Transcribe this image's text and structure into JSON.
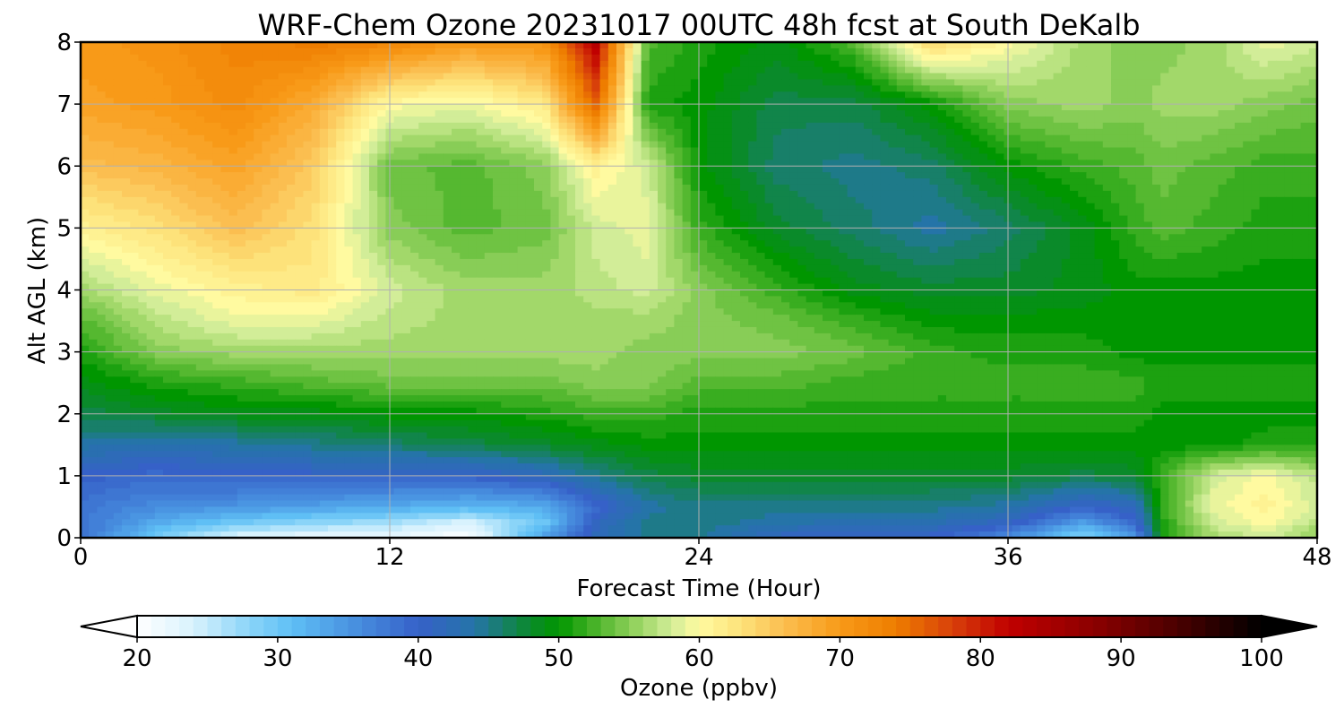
{
  "chart_data": {
    "type": "heatmap",
    "title": "WRF-Chem Ozone  20231017 00UTC 48h fcst at South DeKalb",
    "xlabel": "Forecast Time (Hour)",
    "ylabel": "Alt AGL (km)",
    "xlim": [
      0,
      48
    ],
    "ylim": [
      0,
      8
    ],
    "x_ticks": [
      0,
      12,
      24,
      36,
      48
    ],
    "y_ticks": [
      0,
      1,
      2,
      3,
      4,
      5,
      6,
      7,
      8
    ],
    "grid": true,
    "colorbar": {
      "label": "Ozone  (ppbv)",
      "range": [
        20,
        100
      ],
      "ticks": [
        20,
        30,
        40,
        50,
        60,
        70,
        80,
        90,
        100
      ],
      "extend": "both",
      "min_color": "#ffffff",
      "max_color": "#000000",
      "stops": [
        [
          20,
          "#ffffff"
        ],
        [
          24,
          "#d8f2fd"
        ],
        [
          28,
          "#8ad4f8"
        ],
        [
          31,
          "#5fbff5"
        ],
        [
          35,
          "#4a95e2"
        ],
        [
          40,
          "#3661c8"
        ],
        [
          44,
          "#2574a8"
        ],
        [
          48,
          "#0a8a2a"
        ],
        [
          50,
          "#009600"
        ],
        [
          53,
          "#55b830"
        ],
        [
          56,
          "#a2d86a"
        ],
        [
          58,
          "#d2ed98"
        ],
        [
          60,
          "#fffaa0"
        ],
        [
          63,
          "#fde27a"
        ],
        [
          66,
          "#fbbe50"
        ],
        [
          70,
          "#f89a18"
        ],
        [
          74,
          "#ee7d00"
        ],
        [
          78,
          "#d8400a"
        ],
        [
          82,
          "#c00000"
        ],
        [
          88,
          "#8c0000"
        ],
        [
          94,
          "#4a0000"
        ],
        [
          100,
          "#000000"
        ]
      ]
    },
    "x_hours": [
      0,
      3,
      6,
      9,
      12,
      15,
      18,
      20,
      22,
      24,
      27,
      30,
      33,
      36,
      39,
      41,
      42,
      44,
      46,
      48
    ],
    "y_km": [
      0,
      0.25,
      0.5,
      1,
      1.5,
      2,
      2.5,
      3,
      3.5,
      4,
      5,
      6,
      7,
      8
    ],
    "ozone_ppbv": [
      [
        39,
        29,
        23,
        22,
        22,
        20,
        34,
        42,
        45,
        45,
        41,
        40,
        40,
        36,
        28,
        35,
        51,
        56,
        58,
        55
      ],
      [
        38,
        33,
        30,
        28,
        27,
        24,
        30,
        41,
        45,
        45,
        44,
        43,
        43,
        41,
        34,
        40,
        51,
        58,
        60,
        57
      ],
      [
        38,
        36,
        35,
        34,
        33,
        32,
        33,
        39,
        44,
        45,
        45,
        45,
        45,
        44,
        40,
        42,
        52,
        59,
        61,
        58
      ],
      [
        40,
        39,
        40,
        40,
        40,
        40,
        42,
        45,
        47,
        48,
        48,
        48,
        48,
        48,
        47,
        48,
        52,
        58,
        60,
        57
      ],
      [
        44,
        43,
        44,
        45,
        46,
        47,
        48,
        49,
        50,
        50,
        50,
        50,
        50,
        50,
        50,
        50,
        50,
        50,
        51,
        51
      ],
      [
        47,
        48,
        49,
        49,
        50,
        50,
        51,
        52,
        52,
        51,
        51,
        51,
        51,
        51,
        51,
        51,
        50,
        50,
        50,
        50
      ],
      [
        49,
        51,
        52,
        53,
        54,
        54,
        54,
        55,
        55,
        53,
        53,
        52,
        52,
        52,
        52,
        52,
        51,
        51,
        51,
        51
      ],
      [
        51,
        55,
        56,
        56,
        56,
        56,
        56,
        56,
        55,
        55,
        55,
        54,
        52,
        51,
        51,
        50,
        50,
        50,
        50,
        50
      ],
      [
        53,
        57,
        59,
        59,
        57,
        56,
        56,
        56,
        56,
        55,
        54,
        52,
        50,
        50,
        50,
        50,
        50,
        50,
        50,
        50
      ],
      [
        56,
        59,
        61,
        62,
        58,
        56,
        56,
        57,
        58,
        55,
        52,
        49,
        48,
        48,
        49,
        50,
        50,
        50,
        50,
        50
      ],
      [
        61,
        63,
        66,
        63,
        55,
        53,
        54,
        58,
        59,
        52,
        48,
        46,
        44,
        46,
        49,
        52,
        53,
        52,
        51,
        51
      ],
      [
        66,
        67,
        69,
        65,
        54,
        53,
        55,
        61,
        58,
        50,
        46,
        45,
        46,
        50,
        52,
        53,
        54,
        53,
        52,
        52
      ],
      [
        69,
        70,
        72,
        68,
        60,
        59,
        62,
        76,
        51,
        50,
        47,
        47,
        50,
        55,
        56,
        55,
        56,
        56,
        55,
        54
      ],
      [
        70,
        71,
        73,
        74,
        73,
        70,
        71,
        83,
        53,
        51,
        49,
        53,
        64,
        60,
        56,
        55,
        55,
        56,
        59,
        58
      ]
    ]
  }
}
